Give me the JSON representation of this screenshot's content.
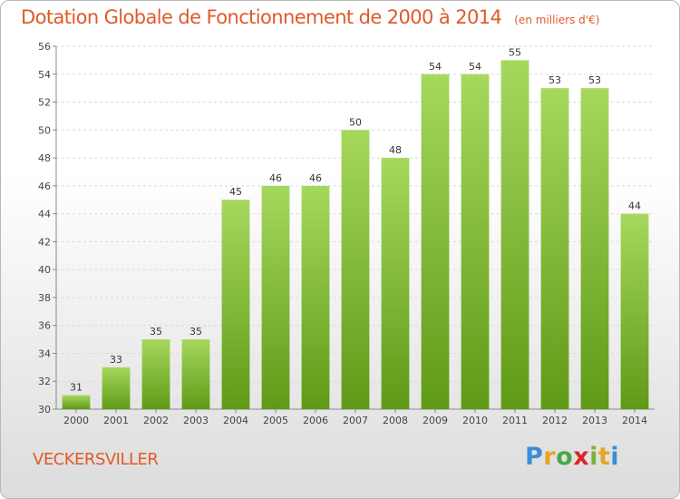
{
  "header": {
    "title": "Dotation Globale de Fonctionnement de 2000 à 2014",
    "unit": "(en milliers d'€)"
  },
  "footer": {
    "commune": "VECKERSVILLER",
    "logo": "Proxiti"
  },
  "colors": {
    "bar_top": "#a6d85e",
    "bar_bottom": "#5f9a16",
    "title": "#e05a28"
  },
  "chart_data": {
    "type": "bar",
    "title": "Dotation Globale de Fonctionnement de 2000 à 2014",
    "xlabel": "",
    "ylabel": "",
    "categories": [
      "2000",
      "2001",
      "2002",
      "2003",
      "2004",
      "2005",
      "2006",
      "2007",
      "2008",
      "2009",
      "2010",
      "2011",
      "2012",
      "2013",
      "2014"
    ],
    "values": [
      31,
      33,
      35,
      35,
      45,
      46,
      46,
      50,
      48,
      54,
      54,
      55,
      53,
      53,
      44
    ],
    "ylim": [
      30,
      56
    ],
    "yticks": [
      30,
      32,
      34,
      36,
      38,
      40,
      42,
      44,
      46,
      48,
      50,
      52,
      54,
      56
    ],
    "grid": true,
    "legend": "none"
  }
}
